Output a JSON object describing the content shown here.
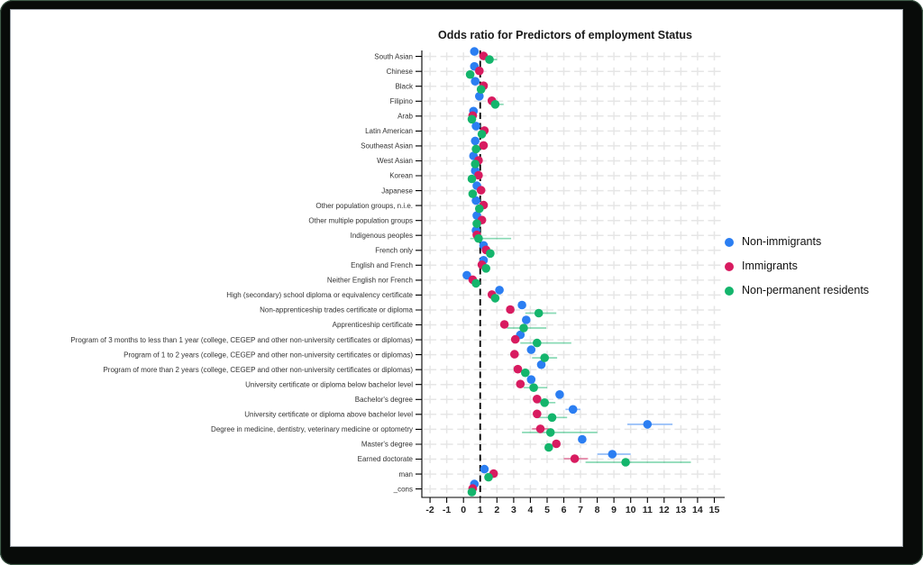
{
  "chart_data": {
    "type": "scatter",
    "title": "Odds ratio for Predictors of employment Status",
    "xlabel": "",
    "ylabel": "",
    "x_ticks": [
      -2,
      -1,
      0,
      1,
      2,
      3,
      4,
      5,
      6,
      7,
      8,
      9,
      10,
      11,
      12,
      13,
      14,
      15
    ],
    "xlim": [
      -2.6,
      15.6
    ],
    "reference_line_x": 1,
    "grid": true,
    "legend_position": "right",
    "series": [
      {
        "key": "non_immigrants",
        "name": "Non-immigrants",
        "color": "#2b7ef2"
      },
      {
        "key": "immigrants",
        "name": "Immigrants",
        "color": "#d81b60"
      },
      {
        "key": "non_permanent_residents",
        "name": "Non-permanent residents",
        "color": "#14b56c"
      }
    ],
    "rows": [
      {
        "label": "South Asian",
        "non_immigrants": [
          0.65,
          null,
          null
        ],
        "immigrants": [
          1.2,
          null,
          null
        ],
        "non_permanent_residents": [
          1.55,
          1.3,
          2.0
        ]
      },
      {
        "label": "Chinese",
        "non_immigrants": [
          0.65,
          null,
          null
        ],
        "immigrants": [
          0.95,
          null,
          null
        ],
        "non_permanent_residents": [
          0.4,
          null,
          null
        ]
      },
      {
        "label": "Black",
        "non_immigrants": [
          0.7,
          null,
          null
        ],
        "immigrants": [
          1.2,
          null,
          null
        ],
        "non_permanent_residents": [
          1.05,
          null,
          null
        ]
      },
      {
        "label": "Filipino",
        "non_immigrants": [
          0.95,
          null,
          null
        ],
        "immigrants": [
          1.7,
          null,
          null
        ],
        "non_permanent_residents": [
          1.9,
          1.6,
          2.4
        ]
      },
      {
        "label": "Arab",
        "non_immigrants": [
          0.6,
          null,
          null
        ],
        "immigrants": [
          0.55,
          null,
          null
        ],
        "non_permanent_residents": [
          0.5,
          null,
          null
        ]
      },
      {
        "label": "Latin American",
        "non_immigrants": [
          0.75,
          null,
          null
        ],
        "immigrants": [
          1.25,
          null,
          null
        ],
        "non_permanent_residents": [
          1.1,
          null,
          null
        ]
      },
      {
        "label": "Southeast Asian",
        "non_immigrants": [
          0.7,
          null,
          null
        ],
        "immigrants": [
          1.2,
          null,
          null
        ],
        "non_permanent_residents": [
          0.75,
          null,
          null
        ]
      },
      {
        "label": "West Asian",
        "non_immigrants": [
          0.6,
          null,
          null
        ],
        "immigrants": [
          0.9,
          null,
          null
        ],
        "non_permanent_residents": [
          0.7,
          null,
          null
        ]
      },
      {
        "label": "Korean",
        "non_immigrants": [
          0.7,
          null,
          null
        ],
        "immigrants": [
          0.9,
          null,
          null
        ],
        "non_permanent_residents": [
          0.5,
          null,
          null
        ]
      },
      {
        "label": "Japanese",
        "non_immigrants": [
          0.8,
          null,
          null
        ],
        "immigrants": [
          1.05,
          null,
          null
        ],
        "non_permanent_residents": [
          0.55,
          null,
          null
        ]
      },
      {
        "label": "Other population groups, n.i.e.",
        "non_immigrants": [
          0.75,
          null,
          null
        ],
        "immigrants": [
          1.2,
          null,
          null
        ],
        "non_permanent_residents": [
          0.95,
          null,
          null
        ]
      },
      {
        "label": "Other multiple population groups",
        "non_immigrants": [
          0.8,
          null,
          null
        ],
        "immigrants": [
          1.1,
          null,
          null
        ],
        "non_permanent_residents": [
          0.8,
          null,
          null
        ]
      },
      {
        "label": "Indigenous peoples",
        "non_immigrants": [
          0.75,
          null,
          null
        ],
        "immigrants": [
          0.8,
          null,
          null
        ],
        "non_permanent_residents": [
          0.9,
          0.4,
          2.85
        ]
      },
      {
        "label": "French only",
        "non_immigrants": [
          1.2,
          null,
          null
        ],
        "immigrants": [
          1.35,
          null,
          null
        ],
        "non_permanent_residents": [
          1.6,
          null,
          null
        ]
      },
      {
        "label": "English and French",
        "non_immigrants": [
          1.2,
          null,
          null
        ],
        "immigrants": [
          1.1,
          null,
          null
        ],
        "non_permanent_residents": [
          1.35,
          null,
          null
        ]
      },
      {
        "label": "Neither English nor French",
        "non_immigrants": [
          0.2,
          null,
          null
        ],
        "immigrants": [
          0.55,
          null,
          null
        ],
        "non_permanent_residents": [
          0.75,
          null,
          null
        ]
      },
      {
        "label": "High (secondary) school diploma or equivalency certificate",
        "non_immigrants": [
          2.15,
          null,
          null
        ],
        "immigrants": [
          1.7,
          null,
          null
        ],
        "non_permanent_residents": [
          1.9,
          null,
          null
        ]
      },
      {
        "label": "Non-apprenticeship trades certificate or diploma",
        "non_immigrants": [
          3.5,
          null,
          null
        ],
        "immigrants": [
          2.8,
          null,
          null
        ],
        "non_permanent_residents": [
          4.5,
          3.7,
          5.55
        ]
      },
      {
        "label": "Apprenticeship certificate",
        "non_immigrants": [
          3.75,
          null,
          null
        ],
        "immigrants": [
          2.45,
          null,
          null
        ],
        "non_permanent_residents": [
          3.6,
          2.6,
          4.95
        ]
      },
      {
        "label": "Program of 3 months to less than 1 year (college, CEGEP and other non-university certificates or diplomas)",
        "non_immigrants": [
          3.4,
          null,
          null
        ],
        "immigrants": [
          3.1,
          null,
          null
        ],
        "non_permanent_residents": [
          4.4,
          3.4,
          6.45
        ]
      },
      {
        "label": "Program of 1 to 2 years (college, CEGEP and other non-university certificates or diplomas)",
        "non_immigrants": [
          4.05,
          null,
          null
        ],
        "immigrants": [
          3.05,
          null,
          null
        ],
        "non_permanent_residents": [
          4.85,
          4.1,
          5.6
        ]
      },
      {
        "label": "Program of more than 2 years (college, CEGEP and other non-university certificates or diplomas)",
        "non_immigrants": [
          4.65,
          null,
          null
        ],
        "immigrants": [
          3.25,
          null,
          null
        ],
        "non_permanent_residents": [
          3.7,
          null,
          null
        ]
      },
      {
        "label": "University certificate or diploma below bachelor level",
        "non_immigrants": [
          4.05,
          null,
          null
        ],
        "immigrants": [
          3.4,
          null,
          null
        ],
        "non_permanent_residents": [
          4.2,
          3.6,
          5.0
        ]
      },
      {
        "label": "Bachelor's degree",
        "non_immigrants": [
          5.75,
          null,
          null
        ],
        "immigrants": [
          4.4,
          null,
          null
        ],
        "non_permanent_residents": [
          4.85,
          4.4,
          5.5
        ]
      },
      {
        "label": "University certificate or diploma above bachelor level",
        "non_immigrants": [
          6.55,
          6.1,
          7.0
        ],
        "immigrants": [
          4.4,
          null,
          null
        ],
        "non_permanent_residents": [
          5.3,
          4.4,
          6.2
        ]
      },
      {
        "label": "Degree in medicine, dentistry, veterinary medicine or optometry",
        "non_immigrants": [
          11.0,
          9.8,
          12.5
        ],
        "immigrants": [
          4.6,
          4.1,
          5.1
        ],
        "non_permanent_residents": [
          5.2,
          3.5,
          8.0
        ]
      },
      {
        "label": "Master's degree",
        "non_immigrants": [
          7.1,
          null,
          null
        ],
        "immigrants": [
          5.55,
          null,
          null
        ],
        "non_permanent_residents": [
          5.1,
          null,
          null
        ]
      },
      {
        "label": "Earned doctorate",
        "non_immigrants": [
          8.9,
          8.0,
          10.0
        ],
        "immigrants": [
          6.65,
          6.0,
          7.45
        ],
        "non_permanent_residents": [
          9.7,
          7.3,
          13.6
        ]
      },
      {
        "label": "man",
        "non_immigrants": [
          1.25,
          null,
          null
        ],
        "immigrants": [
          1.8,
          null,
          null
        ],
        "non_permanent_residents": [
          1.5,
          null,
          null
        ]
      },
      {
        "label": "_cons",
        "non_immigrants": [
          0.65,
          null,
          null
        ],
        "immigrants": [
          0.55,
          null,
          null
        ],
        "non_permanent_residents": [
          0.5,
          null,
          null
        ]
      }
    ]
  }
}
